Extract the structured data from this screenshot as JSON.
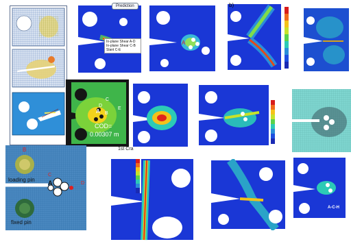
{
  "prediction_button": "Prediction",
  "panel_b_marker": "b)",
  "shear_legend": {
    "lines": [
      "In-plane Shear A-D",
      "In-plane Shear C-B",
      "Slant C-E"
    ]
  },
  "cod_panel": {
    "cod_text": "COD=",
    "cod_value": "0.00307 m",
    "pins": [
      "C",
      "D",
      "B",
      "A"
    ],
    "edge_label": "E"
  },
  "fem_panel": {
    "loading_pin": "loading pin",
    "fixed_pin": "fixed pin",
    "point_b": "B",
    "point_a": "A",
    "point_c": "C",
    "point_d": "D"
  },
  "first_crack_label": "1st Cra",
  "acr_label": "A-C-H",
  "panel_labels": {
    "red_a": "A",
    "red_b": "B",
    "red_e": "E"
  },
  "colors": {
    "abaqus_blue": "#1a37d6",
    "mesh_blue": "#3d7ab4",
    "cod_bg": "#151515",
    "cyan_panel": "#7fd6d0"
  }
}
